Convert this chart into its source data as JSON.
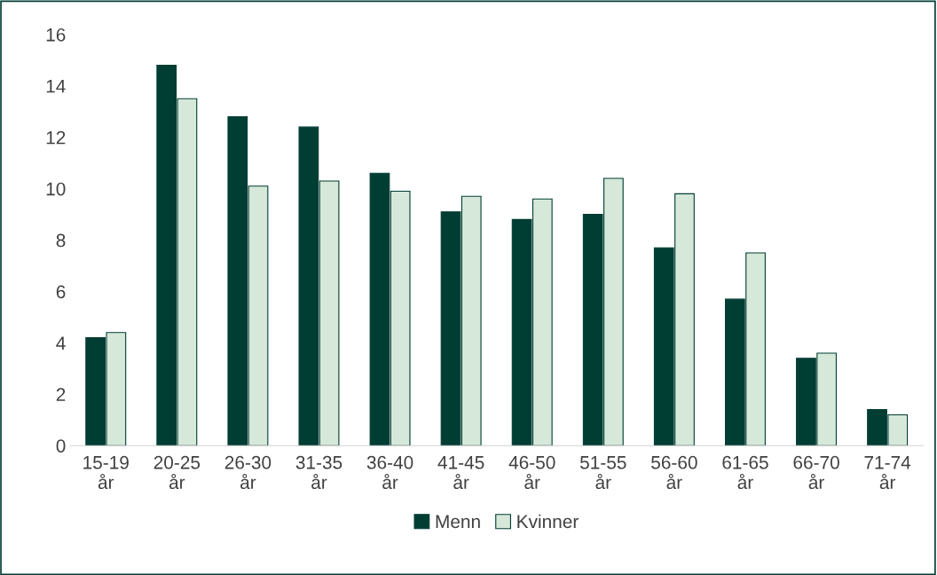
{
  "chart_data": {
    "type": "bar",
    "categories": [
      "15-19\når",
      "20-25\når",
      "26-30\når",
      "31-35\når",
      "36-40\når",
      "41-45\når",
      "46-50\når",
      "51-55\når",
      "56-60\når",
      "61-65\når",
      "66-70\når",
      "71-74\når"
    ],
    "series": [
      {
        "name": "Menn",
        "color": "#003d33",
        "values": [
          4.2,
          14.8,
          12.8,
          12.4,
          10.6,
          9.1,
          8.8,
          9.0,
          7.7,
          5.7,
          3.4,
          1.4
        ]
      },
      {
        "name": "Kvinner",
        "color": "#d6e8d9",
        "values": [
          4.4,
          13.5,
          10.1,
          10.3,
          9.9,
          9.7,
          9.6,
          10.4,
          9.8,
          7.5,
          3.6,
          1.2
        ]
      }
    ],
    "ylim": [
      0,
      16
    ],
    "yticks": [
      0,
      2,
      4,
      6,
      8,
      10,
      12,
      14,
      16
    ],
    "grid": false,
    "legend": "bottom"
  }
}
